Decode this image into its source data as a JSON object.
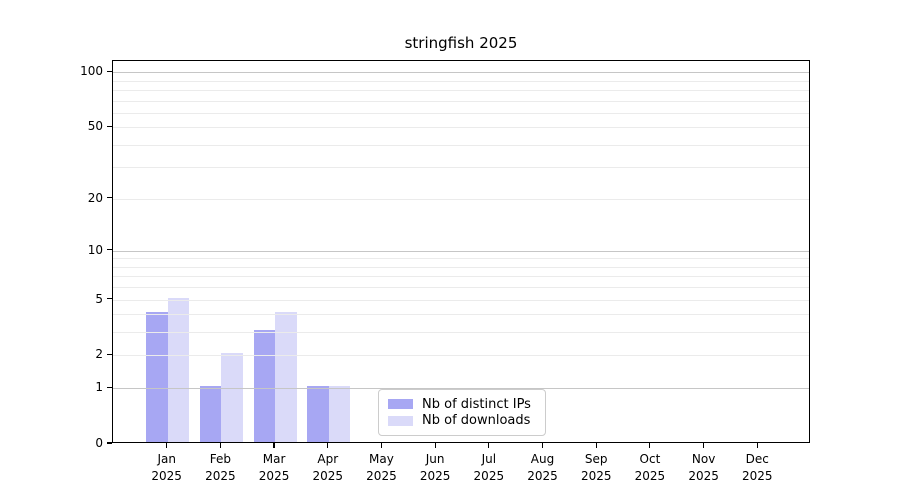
{
  "chart_data": {
    "type": "bar",
    "title": "stringfish 2025",
    "year": "2025",
    "categories": [
      "Jan",
      "Feb",
      "Mar",
      "Apr",
      "May",
      "Jun",
      "Jul",
      "Aug",
      "Sep",
      "Oct",
      "Nov",
      "Dec"
    ],
    "series": [
      {
        "name": "Nb of distinct IPs",
        "color": "#a7a7f3",
        "values": [
          4,
          1,
          3,
          1,
          0,
          0,
          0,
          0,
          0,
          0,
          0,
          0
        ]
      },
      {
        "name": "Nb of downloads",
        "color": "#dadaf9",
        "values": [
          5,
          2,
          4,
          1,
          0,
          0,
          0,
          0,
          0,
          0,
          0,
          0
        ]
      }
    ],
    "yscale": "log1p",
    "ylim": [
      0,
      115
    ],
    "y_ticks": [
      0,
      1,
      2,
      5,
      10,
      20,
      50,
      100
    ],
    "grid_major_values": [
      1,
      10,
      100
    ],
    "grid_minor_values": [
      2,
      3,
      4,
      5,
      6,
      7,
      8,
      9,
      20,
      30,
      40,
      50,
      60,
      70,
      80,
      90
    ],
    "grid": true,
    "legend_position": "lower-center-left",
    "colors": {
      "major_grid": "#c6c6c6",
      "minor_grid": "#ebebeb",
      "axis": "#000000",
      "background": "#ffffff"
    }
  }
}
